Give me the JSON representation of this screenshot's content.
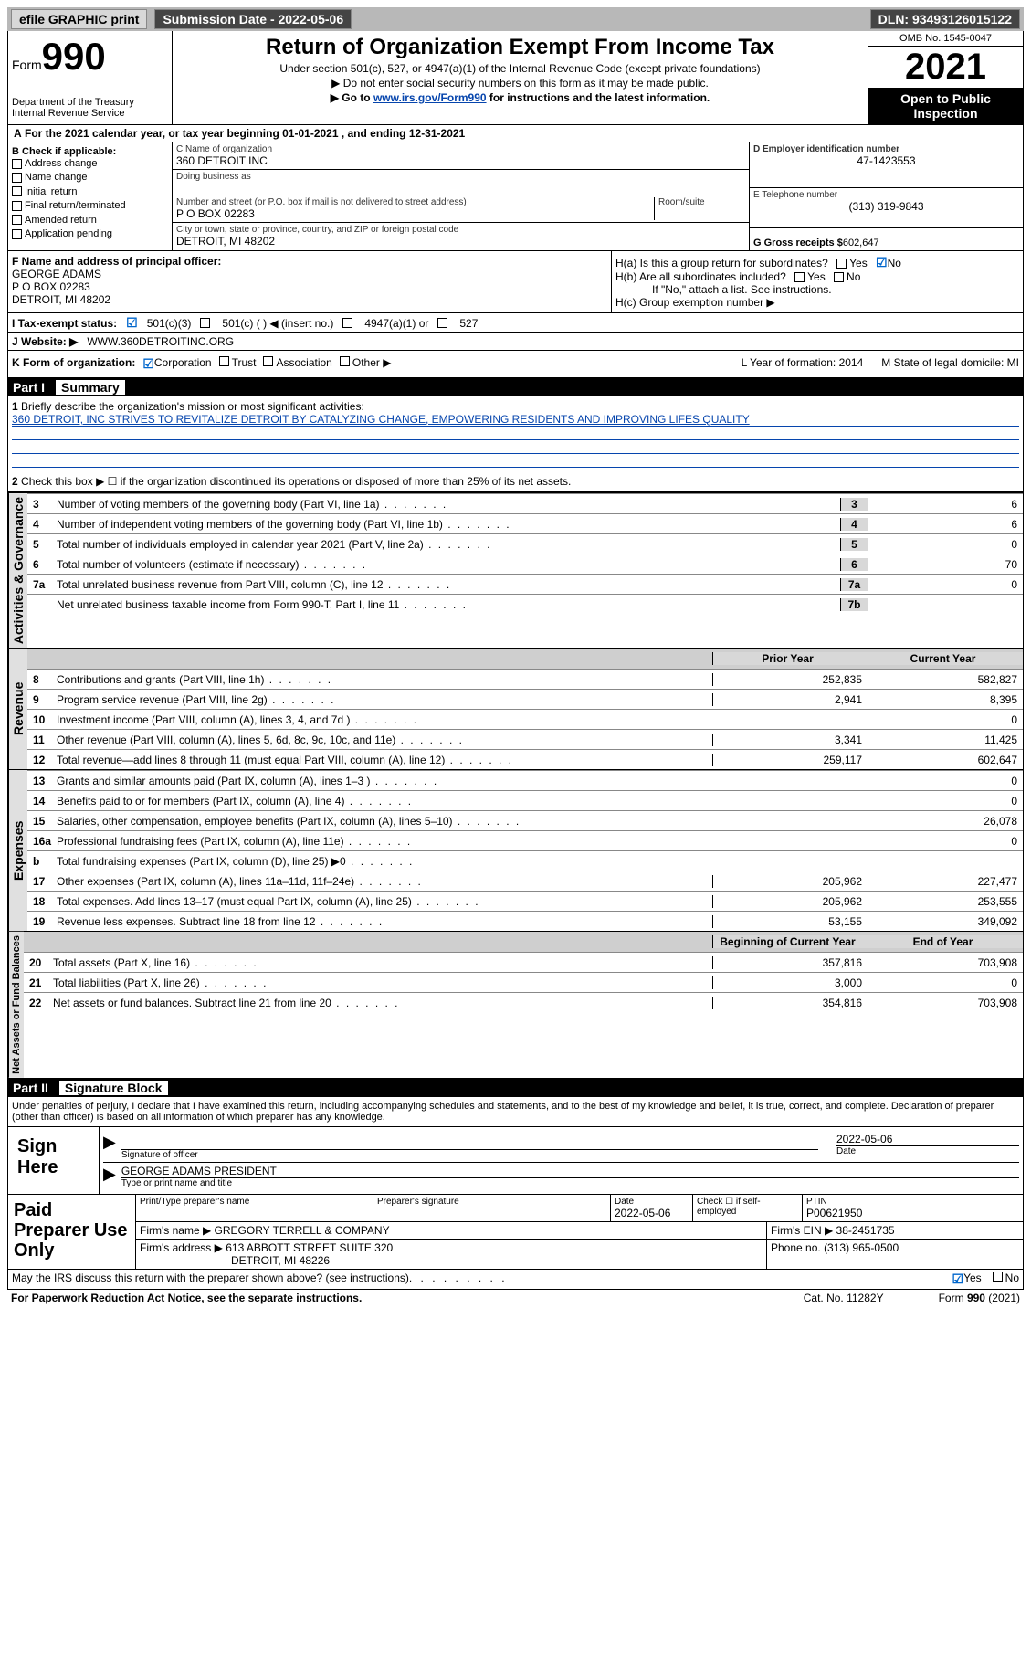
{
  "topbar": {
    "efile": "efile GRAPHIC print",
    "submission_label": "Submission Date - 2022-05-06",
    "dln_label": "DLN: 93493126015122"
  },
  "header": {
    "form_word": "Form",
    "form_num": "990",
    "dept": "Department of the Treasury",
    "irs": "Internal Revenue Service",
    "title": "Return of Organization Exempt From Income Tax",
    "subtitle": "Under section 501(c), 527, or 4947(a)(1) of the Internal Revenue Code (except private foundations)",
    "noss": "▶ Do not enter social security numbers on this form as it may be made public.",
    "goto_prefix": "▶ Go to ",
    "goto_link": "www.irs.gov/Form990",
    "goto_suffix": " for instructions and the latest information.",
    "omb": "OMB No. 1545-0047",
    "year": "2021",
    "open": "Open to Public Inspection"
  },
  "lineA": "For the 2021 calendar year, or tax year beginning 01-01-2021   , and ending 12-31-2021",
  "boxB": {
    "label": "B Check if applicable:",
    "items": [
      "Address change",
      "Name change",
      "Initial return",
      "Final return/terminated",
      "Amended return",
      "Application pending"
    ]
  },
  "boxC": {
    "label": "C Name of organization",
    "name": "360 DETROIT INC",
    "dba_label": "Doing business as",
    "addr_label": "Number and street (or P.O. box if mail is not delivered to street address)",
    "addr": "P O BOX 02283",
    "room_label": "Room/suite",
    "city_label": "City or town, state or province, country, and ZIP or foreign postal code",
    "city": "DETROIT, MI  48202"
  },
  "boxD": {
    "label": "D Employer identification number",
    "ein": "47-1423553"
  },
  "boxE": {
    "label": "E Telephone number",
    "phone": "(313) 319-9843"
  },
  "boxG": {
    "label": "G Gross receipts $",
    "amount": "602,647"
  },
  "boxF": {
    "label": "F  Name and address of principal officer:",
    "name": "GEORGE ADAMS",
    "addr1": "P O BOX 02283",
    "addr2": "DETROIT, MI  48202"
  },
  "boxH": {
    "a": "H(a)  Is this a group return for subordinates?",
    "b": "H(b)  Are all subordinates included?",
    "b_note": "If \"No,\" attach a list. See instructions.",
    "c": "H(c)  Group exemption number ▶",
    "yes": "Yes",
    "no": "No"
  },
  "lineI": {
    "label": "I   Tax-exempt status:",
    "c3": "501(c)(3)",
    "c": "501(c) (   ) ◀ (insert no.)",
    "a1": "4947(a)(1) or",
    "s527": "527"
  },
  "lineJ": {
    "label": "J   Website: ▶",
    "url": "WWW.360DETROITINC.ORG"
  },
  "lineK": {
    "label": "K Form of organization:",
    "corp": "Corporation",
    "trust": "Trust",
    "assoc": "Association",
    "other": "Other ▶",
    "L": "L Year of formation: 2014",
    "M": "M State of legal domicile: MI"
  },
  "part1": {
    "num": "Part I",
    "title": "Summary"
  },
  "summary": {
    "l1": "Briefly describe the organization's mission or most significant activities:",
    "mission": "360 DETROIT, INC STRIVES TO REVITALIZE DETROIT BY CATALYZING CHANGE, EMPOWERING RESIDENTS AND IMPROVING LIFES QUALITY",
    "l2": "Check this box ▶ ☐  if the organization discontinued its operations or disposed of more than 25% of its net assets.",
    "rows_gov": [
      {
        "n": "3",
        "d": "Number of voting members of the governing body (Part VI, line 1a)",
        "box": "3",
        "v": "6"
      },
      {
        "n": "4",
        "d": "Number of independent voting members of the governing body (Part VI, line 1b)",
        "box": "4",
        "v": "6"
      },
      {
        "n": "5",
        "d": "Total number of individuals employed in calendar year 2021 (Part V, line 2a)",
        "box": "5",
        "v": "0"
      },
      {
        "n": "6",
        "d": "Total number of volunteers (estimate if necessary)",
        "box": "6",
        "v": "70"
      },
      {
        "n": "7a",
        "d": "Total unrelated business revenue from Part VIII, column (C), line 12",
        "box": "7a",
        "v": "0"
      },
      {
        "n": "",
        "d": "Net unrelated business taxable income from Form 990-T, Part I, line 11",
        "box": "7b",
        "v": ""
      }
    ],
    "hdr_prior": "Prior Year",
    "hdr_curr": "Current Year",
    "rows_rev": [
      {
        "n": "8",
        "d": "Contributions and grants (Part VIII, line 1h)",
        "p": "252,835",
        "c": "582,827"
      },
      {
        "n": "9",
        "d": "Program service revenue (Part VIII, line 2g)",
        "p": "2,941",
        "c": "8,395"
      },
      {
        "n": "10",
        "d": "Investment income (Part VIII, column (A), lines 3, 4, and 7d )",
        "p": "",
        "c": "0"
      },
      {
        "n": "11",
        "d": "Other revenue (Part VIII, column (A), lines 5, 6d, 8c, 9c, 10c, and 11e)",
        "p": "3,341",
        "c": "11,425"
      },
      {
        "n": "12",
        "d": "Total revenue—add lines 8 through 11 (must equal Part VIII, column (A), line 12)",
        "p": "259,117",
        "c": "602,647"
      }
    ],
    "rows_exp": [
      {
        "n": "13",
        "d": "Grants and similar amounts paid (Part IX, column (A), lines 1–3 )",
        "p": "",
        "c": "0"
      },
      {
        "n": "14",
        "d": "Benefits paid to or for members (Part IX, column (A), line 4)",
        "p": "",
        "c": "0"
      },
      {
        "n": "15",
        "d": "Salaries, other compensation, employee benefits (Part IX, column (A), lines 5–10)",
        "p": "",
        "c": "26,078"
      },
      {
        "n": "16a",
        "d": "Professional fundraising fees (Part IX, column (A), line 11e)",
        "p": "",
        "c": "0"
      },
      {
        "n": "b",
        "d": "Total fundraising expenses (Part IX, column (D), line 25) ▶0",
        "p": "",
        "c": "",
        "shade": true
      },
      {
        "n": "17",
        "d": "Other expenses (Part IX, column (A), lines 11a–11d, 11f–24e)",
        "p": "205,962",
        "c": "227,477"
      },
      {
        "n": "18",
        "d": "Total expenses. Add lines 13–17 (must equal Part IX, column (A), line 25)",
        "p": "205,962",
        "c": "253,555"
      },
      {
        "n": "19",
        "d": "Revenue less expenses. Subtract line 18 from line 12",
        "p": "53,155",
        "c": "349,092"
      }
    ],
    "hdr_beg": "Beginning of Current Year",
    "hdr_end": "End of Year",
    "rows_net": [
      {
        "n": "20",
        "d": "Total assets (Part X, line 16)",
        "p": "357,816",
        "c": "703,908"
      },
      {
        "n": "21",
        "d": "Total liabilities (Part X, line 26)",
        "p": "3,000",
        "c": "0"
      },
      {
        "n": "22",
        "d": "Net assets or fund balances. Subtract line 21 from line 20",
        "p": "354,816",
        "c": "703,908"
      }
    ],
    "tabs": {
      "gov": "Activities & Governance",
      "rev": "Revenue",
      "exp": "Expenses",
      "net": "Net Assets or Fund Balances"
    }
  },
  "part2": {
    "num": "Part II",
    "title": "Signature Block"
  },
  "sig": {
    "declare": "Under penalties of perjury, I declare that I have examined this return, including accompanying schedules and statements, and to the best of my knowledge and belief, it is true, correct, and complete. Declaration of preparer (other than officer) is based on all information of which preparer has any knowledge.",
    "sign_here": "Sign Here",
    "officer_label": "Signature of officer",
    "date_label": "Date",
    "date": "2022-05-06",
    "officer_name": "GEORGE ADAMS  PRESIDENT",
    "name_label": "Type or print name and title"
  },
  "paid": {
    "title": "Paid Preparer Use Only",
    "h1": "Print/Type preparer's name",
    "h2": "Preparer's signature",
    "h3": "Date",
    "h3v": "2022-05-06",
    "h4": "Check ☐ if self-employed",
    "h5": "PTIN",
    "h5v": "P00621950",
    "firm_label": "Firm's name   ▶",
    "firm": "GREGORY TERRELL & COMPANY",
    "ein_label": "Firm's EIN ▶",
    "ein": "38-2451735",
    "addr_label": "Firm's address ▶",
    "addr": "613 ABBOTT STREET SUITE 320",
    "addr2": "DETROIT, MI  48226",
    "phone_label": "Phone no.",
    "phone": "(313) 965-0500"
  },
  "footer": {
    "discuss": "May the IRS discuss this return with the preparer shown above? (see instructions)",
    "yes": "Yes",
    "no": "No",
    "pra": "For Paperwork Reduction Act Notice, see the separate instructions.",
    "cat": "Cat. No. 11282Y",
    "form": "Form 990 (2021)"
  }
}
